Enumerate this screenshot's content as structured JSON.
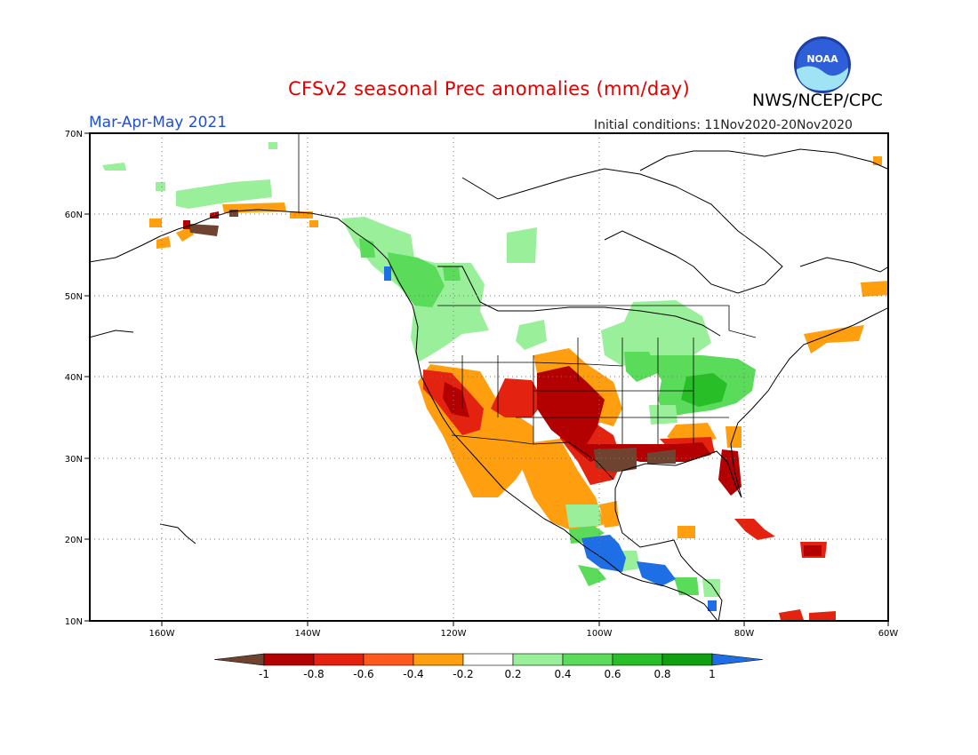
{
  "title": "CFSv2 seasonal Prec anomalies (mm/day)",
  "agency": "NWS/NCEP/CPC",
  "logo_text": "NOAA",
  "season": "Mar-Apr-May 2021",
  "initial_conditions": "Initial conditions: 11Nov2020-20Nov2020",
  "lat_labels": [
    "70N",
    "60N",
    "50N",
    "40N",
    "30N",
    "20N",
    "10N"
  ],
  "lon_labels": [
    "160W",
    "140W",
    "120W",
    "100W",
    "80W",
    "60W"
  ],
  "colorbar": {
    "tick_labels": [
      "-1",
      "-0.8",
      "-0.6",
      "-0.4",
      "-0.2",
      "0.2",
      "0.4",
      "0.6",
      "0.8",
      "1"
    ],
    "colors": [
      "#6e4431",
      "#b30000",
      "#e3230f",
      "#ff5a1e",
      "#ff9f0f",
      "#ffffff",
      "#9af09a",
      "#5adc5a",
      "#28be28",
      "#0f9f0f",
      "#1e6ee6"
    ]
  },
  "regions": [
    {
      "name": "alaska-wet",
      "color": "#9af09a"
    },
    {
      "name": "alaska-dry",
      "color": "#ff9f0f"
    },
    {
      "name": "alaska-very-dry",
      "color": "#6e4431"
    },
    {
      "name": "pacific-northwest-wet",
      "color": "#5adc5a"
    },
    {
      "name": "great-lakes-wet",
      "color": "#9af09a"
    },
    {
      "name": "ohio-valley-wet",
      "color": "#5adc5a"
    },
    {
      "name": "southwest-dry",
      "color": "#e3230f"
    },
    {
      "name": "southern-plains-dry",
      "color": "#b30000"
    },
    {
      "name": "gulf-coast-very-dry",
      "color": "#6e4431"
    },
    {
      "name": "florida-dry",
      "color": "#b30000"
    },
    {
      "name": "southern-mexico-wet",
      "color": "#1e6ee6"
    },
    {
      "name": "caribbean-dry",
      "color": "#e3230f"
    },
    {
      "name": "east-canada-dry",
      "color": "#ff9f0f"
    }
  ]
}
